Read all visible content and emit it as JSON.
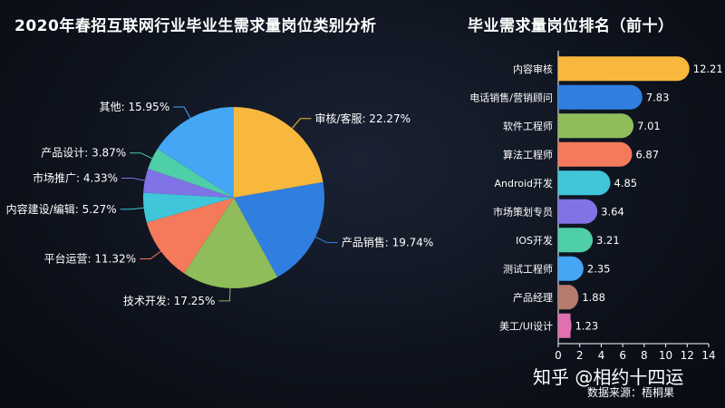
{
  "chart_data": [
    {
      "type": "pie",
      "title": "2020年春招互联网行业毕业生需求量岗位类别分析",
      "slices": [
        {
          "label": "审核/客服",
          "value": 22.27,
          "display": "审核/客服: 22.27%",
          "color": "#f7b83d"
        },
        {
          "label": "产品销售",
          "value": 19.74,
          "display": "产品销售: 19.74%",
          "color": "#2f7ee0"
        },
        {
          "label": "技术开发",
          "value": 17.25,
          "display": "技术开发: 17.25%",
          "color": "#8fbd5a"
        },
        {
          "label": "平台运营",
          "value": 11.32,
          "display": "平台运营: 11.32%",
          "color": "#f47a5b"
        },
        {
          "label": "内容建设/编辑",
          "value": 5.27,
          "display": "内容建设/编辑: 5.27%",
          "color": "#3fc6d8"
        },
        {
          "label": "市场推广",
          "value": 4.33,
          "display": "市场推广: 4.33%",
          "color": "#7f73e6"
        },
        {
          "label": "产品设计",
          "value": 3.87,
          "display": "产品设计: 3.87%",
          "color": "#4ecfa7"
        },
        {
          "label": "其他",
          "value": 15.95,
          "display": "其他: 15.95%",
          "color": "#45a6f5"
        }
      ]
    },
    {
      "type": "bar",
      "orientation": "horizontal",
      "title": "毕业需求量岗位排名（前十）",
      "categories": [
        "内容审核",
        "电话销售/营销顾问",
        "软件工程师",
        "算法工程师",
        "Android开发",
        "市场策划专员",
        "IOS开发",
        "测试工程师",
        "产品经理",
        "美工/UI设计"
      ],
      "values": [
        12.21,
        7.83,
        7.01,
        6.87,
        4.85,
        3.64,
        3.21,
        2.35,
        1.88,
        1.23
      ],
      "value_labels": [
        "12.21",
        "7.83",
        "7.01",
        "6.87",
        "4.85",
        "3.64",
        "3.21",
        "2.35",
        "1.88",
        "1.23"
      ],
      "colors": [
        "#f7b83d",
        "#2f7ee0",
        "#8fbd5a",
        "#f47a5b",
        "#3fc6d8",
        "#7f73e6",
        "#4ecfa7",
        "#45a6f5",
        "#b57b6e",
        "#e070b0"
      ],
      "xlim": [
        0,
        14
      ],
      "xticks": [
        "0",
        "2",
        "4",
        "6",
        "8",
        "10",
        "12",
        "14"
      ]
    }
  ],
  "watermark": "知乎 @相约十四运",
  "source": "数据来源：梧桐果"
}
